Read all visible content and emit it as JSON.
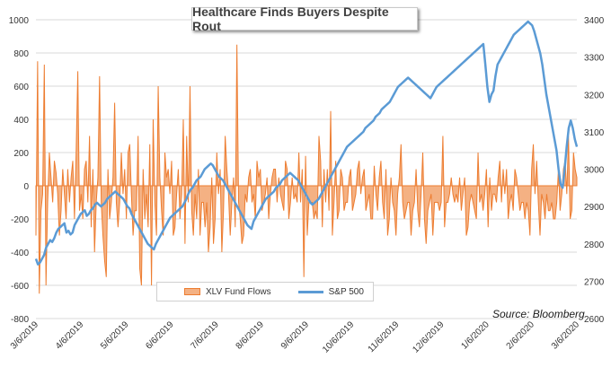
{
  "title": "Healthcare Finds Buyers Despite Rout",
  "source": "Source: Bloomberg",
  "colors": {
    "flows_fill": "#f4b183",
    "flows_stroke": "#ed7d31",
    "sp500": "#5b9bd5",
    "grid": "#d9d9d9"
  },
  "chart_data": {
    "type": "bar",
    "x_tick_labels": [
      "3/6/2019",
      "4/6/2019",
      "5/6/2019",
      "6/6/2019",
      "7/6/2019",
      "8/6/2019",
      "9/6/2019",
      "10/6/2019",
      "11/6/2019",
      "12/6/2019",
      "1/6/2020",
      "2/6/2020",
      "3/6/2020"
    ],
    "left_axis": {
      "ylim": [
        -800,
        1000
      ],
      "ticks": [
        "-800",
        "-600",
        "-400",
        "-200",
        "0",
        "200",
        "400",
        "600",
        "800",
        "1000"
      ]
    },
    "right_axis": {
      "ylim": [
        2600,
        3400
      ],
      "ticks": [
        "2600",
        "2700",
        "2800",
        "2900",
        "3000",
        "3100",
        "3200",
        "3300",
        "3400"
      ]
    },
    "grid": true,
    "legend_position": "bottom-center",
    "series": [
      {
        "name": "XLV Fund Flows",
        "kind": "area",
        "axis": "left",
        "values": [
          -300,
          750,
          -650,
          -150,
          -50,
          730,
          -600,
          -100,
          200,
          50,
          -100,
          150,
          80,
          -50,
          -300,
          -150,
          100,
          -50,
          -200,
          100,
          -100,
          50,
          150,
          -200,
          200,
          690,
          -150,
          -50,
          -200,
          100,
          150,
          -100,
          300,
          -250,
          100,
          -400,
          -100,
          50,
          660,
          -100,
          -300,
          -450,
          -550,
          100,
          -200,
          -100,
          50,
          500,
          -100,
          -250,
          -100,
          200,
          -50,
          100,
          -200,
          200,
          250,
          -50,
          -300,
          -150,
          -150,
          300,
          -500,
          -600,
          100,
          -200,
          -50,
          -250,
          250,
          -600,
          400,
          -100,
          -300,
          600,
          50,
          -150,
          -300,
          200,
          50,
          100,
          -50,
          150,
          -300,
          -250,
          -50,
          100,
          -200,
          -50,
          400,
          -350,
          300,
          -100,
          600,
          -150,
          -300,
          -50,
          -200,
          100,
          -300,
          -100,
          -100,
          -250,
          -100,
          -400,
          -250,
          50,
          -350,
          -200,
          200,
          -50,
          100,
          -400,
          -150,
          300,
          100,
          -50,
          -300,
          -100,
          50,
          -250,
          850,
          -100,
          -200,
          -350,
          -300,
          -50,
          -100,
          50,
          100,
          -100,
          -50,
          -200,
          150,
          50,
          100,
          -150,
          -100,
          -50,
          50,
          -200,
          -50,
          50,
          100,
          100,
          -100,
          50,
          -50,
          -100,
          -150,
          150,
          100,
          -200,
          -100,
          50,
          -80,
          -50,
          -100,
          200,
          -100,
          100,
          -550,
          180,
          -300,
          -100,
          -100,
          -100,
          -200,
          -150,
          -200,
          300,
          150,
          -250,
          100,
          -100,
          100,
          -150,
          450,
          -300,
          -100,
          150,
          -200,
          -150,
          100,
          50,
          -150,
          -100,
          -100,
          50,
          100,
          -150,
          -100,
          -50,
          100,
          150,
          -50,
          50,
          100,
          -150,
          -100,
          -50,
          -200,
          -200,
          120,
          -50,
          -150,
          50,
          150,
          -100,
          -200,
          100,
          -300,
          -200,
          50,
          -100,
          -150,
          -300,
          -50,
          50,
          250,
          -100,
          -200,
          -150,
          -100,
          -100,
          -300,
          -150,
          -100,
          100,
          -150,
          -250,
          -50,
          200,
          -200,
          -350,
          -150,
          -100,
          -50,
          -300,
          -100,
          -100,
          -100,
          -150,
          -100,
          300,
          -250,
          -100,
          -100,
          -50,
          50,
          -50,
          -100,
          -50,
          -100,
          50,
          -150,
          -50,
          50,
          -300,
          -250,
          -100,
          -50,
          -100,
          -150,
          -200,
          200,
          -100,
          -50,
          -150,
          -50,
          100,
          -250,
          50,
          -150,
          -50,
          -50,
          -100,
          50,
          150,
          -100,
          100,
          -50,
          100,
          -200,
          -100,
          -50,
          -150,
          100,
          50,
          -50,
          -150,
          -100,
          -100,
          -200,
          -100,
          -150,
          -300,
          100,
          250,
          -50,
          150,
          -100,
          -300,
          -50,
          -100,
          -200,
          -50,
          -150,
          -150,
          -100,
          -200,
          -200,
          -100,
          100,
          -150,
          -50,
          100,
          150,
          -50,
          300,
          -200,
          -150,
          200,
          100,
          50
        ]
      },
      {
        "name": "S&P 500",
        "kind": "line",
        "axis": "right",
        "values": [
          2760,
          2745,
          2750,
          2760,
          2770,
          2790,
          2800,
          2810,
          2805,
          2815,
          2830,
          2840,
          2845,
          2850,
          2855,
          2830,
          2835,
          2825,
          2830,
          2850,
          2860,
          2870,
          2880,
          2885,
          2890,
          2875,
          2880,
          2890,
          2895,
          2905,
          2910,
          2905,
          2900,
          2905,
          2910,
          2920,
          2925,
          2930,
          2935,
          2940,
          2935,
          2930,
          2925,
          2920,
          2910,
          2900,
          2895,
          2880,
          2870,
          2860,
          2850,
          2840,
          2830,
          2820,
          2810,
          2800,
          2795,
          2790,
          2785,
          2800,
          2810,
          2820,
          2830,
          2840,
          2850,
          2860,
          2870,
          2875,
          2880,
          2885,
          2890,
          2895,
          2900,
          2910,
          2920,
          2935,
          2945,
          2950,
          2960,
          2970,
          2975,
          2980,
          2990,
          3000,
          3005,
          3010,
          3015,
          3010,
          3000,
          2990,
          2980,
          2975,
          2970,
          2960,
          2950,
          2940,
          2930,
          2920,
          2910,
          2900,
          2890,
          2880,
          2870,
          2860,
          2850,
          2845,
          2840,
          2860,
          2870,
          2880,
          2890,
          2900,
          2910,
          2920,
          2925,
          2930,
          2935,
          2940,
          2950,
          2955,
          2960,
          2970,
          2975,
          2980,
          2985,
          2990,
          2985,
          2980,
          2975,
          2970,
          2960,
          2950,
          2940,
          2930,
          2920,
          2910,
          2905,
          2910,
          2915,
          2920,
          2930,
          2940,
          2950,
          2960,
          2970,
          2980,
          2990,
          3000,
          3010,
          3020,
          3030,
          3040,
          3050,
          3060,
          3065,
          3070,
          3075,
          3080,
          3085,
          3090,
          3095,
          3100,
          3110,
          3115,
          3120,
          3125,
          3130,
          3140,
          3145,
          3150,
          3160,
          3165,
          3170,
          3175,
          3180,
          3190,
          3200,
          3210,
          3220,
          3225,
          3230,
          3235,
          3240,
          3245,
          3240,
          3235,
          3230,
          3225,
          3220,
          3215,
          3210,
          3205,
          3200,
          3195,
          3190,
          3200,
          3210,
          3220,
          3225,
          3230,
          3235,
          3240,
          3245,
          3250,
          3255,
          3260,
          3265,
          3270,
          3275,
          3280,
          3285,
          3290,
          3295,
          3300,
          3305,
          3310,
          3315,
          3320,
          3325,
          3330,
          3335,
          3280,
          3220,
          3180,
          3200,
          3210,
          3250,
          3280,
          3290,
          3300,
          3310,
          3320,
          3330,
          3340,
          3350,
          3360,
          3365,
          3370,
          3375,
          3380,
          3385,
          3390,
          3395,
          3390,
          3385,
          3370,
          3350,
          3330,
          3310,
          3280,
          3240,
          3200,
          3170,
          3140,
          3110,
          3080,
          3050,
          3000,
          2960,
          2950,
          3000,
          3060,
          3110,
          3130,
          3110,
          3080,
          3060
        ]
      }
    ]
  }
}
